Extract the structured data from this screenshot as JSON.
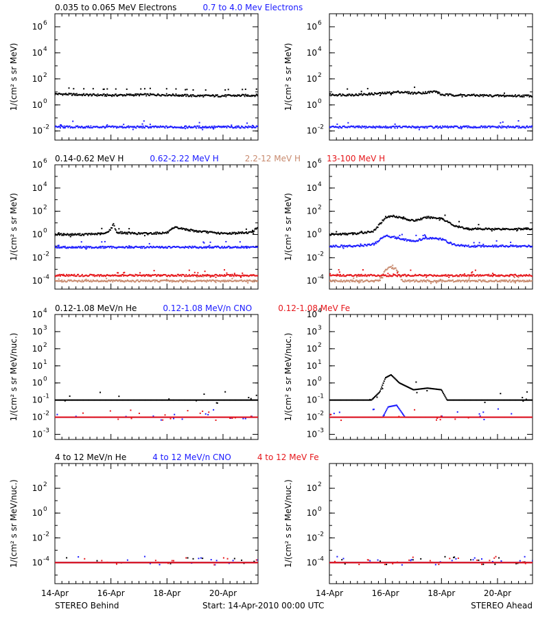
{
  "footer": {
    "left": "STEREO Behind",
    "center": "Start: 14-Apr-2010 00:00 UTC",
    "right": "STEREO Ahead"
  },
  "x_ticks": [
    "14-Apr",
    "16-Apr",
    "18-Apr",
    "20-Apr"
  ],
  "x_range_days": [
    14,
    21.25
  ],
  "colors": {
    "black": "#000000",
    "blue": "#1a1aff",
    "tan": "#c88a6e",
    "red": "#e6161a"
  },
  "chart_data": [
    {
      "type": "scatter",
      "row": 1,
      "spacecraft": "STEREO Behind",
      "log_y": true,
      "ylabel": "1/(cm² s sr MeV)",
      "ylim": [
        0.002,
        10000000
      ],
      "yticks": [
        {
          "v": 0.01,
          "m": "10",
          "e": "-2"
        },
        {
          "v": 1,
          "m": "10",
          "e": "0"
        },
        {
          "v": 100,
          "m": "10",
          "e": "2"
        },
        {
          "v": 10000,
          "m": "10",
          "e": "4"
        },
        {
          "v": 1000000,
          "m": "10",
          "e": "6"
        }
      ],
      "legend": [
        {
          "label": "0.035 to 0.065 MeV Electrons",
          "color": "black"
        },
        {
          "label": "0.7 to 4.0 Mev Electrons",
          "color": "blue"
        }
      ],
      "series": [
        {
          "name": "0.035 to 0.065 MeV Electrons",
          "color": "black",
          "x": [
            14,
            15,
            16,
            17,
            18,
            19,
            20,
            21.25
          ],
          "y": [
            7,
            6,
            5.5,
            6,
            6,
            5,
            5,
            5.5
          ]
        },
        {
          "name": "0.7 to 4.0 Mev Electrons",
          "color": "blue",
          "x": [
            14,
            21.25
          ],
          "y": [
            0.02,
            0.02
          ]
        }
      ]
    },
    {
      "type": "scatter",
      "row": 1,
      "spacecraft": "STEREO Ahead",
      "log_y": true,
      "ylabel": "1/(cm² s sr MeV)",
      "ylim": [
        0.002,
        10000000
      ],
      "yticks": [
        {
          "v": 0.01,
          "m": "10",
          "e": "-2"
        },
        {
          "v": 1,
          "m": "10",
          "e": "0"
        },
        {
          "v": 100,
          "m": "10",
          "e": "2"
        },
        {
          "v": 10000,
          "m": "10",
          "e": "4"
        },
        {
          "v": 1000000,
          "m": "10",
          "e": "6"
        }
      ],
      "legend": [],
      "series": [
        {
          "name": "0.035 to 0.065 MeV Electrons",
          "color": "black",
          "x": [
            14,
            15,
            16,
            16.5,
            17,
            17.5,
            17.8,
            18,
            19,
            20,
            21.25
          ],
          "y": [
            6,
            6,
            8,
            10,
            8,
            9,
            11,
            6,
            5.5,
            5,
            5
          ]
        },
        {
          "name": "0.7 to 4.0 Mev Electrons",
          "color": "blue",
          "x": [
            14,
            21.25
          ],
          "y": [
            0.02,
            0.02
          ]
        }
      ]
    },
    {
      "type": "scatter",
      "row": 2,
      "spacecraft": "STEREO Behind",
      "log_y": true,
      "ylabel": "1/(cm² s sr MeV)",
      "ylim": [
        2e-05,
        1000000
      ],
      "yticks": [
        {
          "v": 0.0001,
          "m": "10",
          "e": "-4"
        },
        {
          "v": 0.01,
          "m": "10",
          "e": "-2"
        },
        {
          "v": 1,
          "m": "10",
          "e": "0"
        },
        {
          "v": 100,
          "m": "10",
          "e": "2"
        },
        {
          "v": 10000,
          "m": "10",
          "e": "4"
        },
        {
          "v": 1000000,
          "m": "10",
          "e": "6"
        }
      ],
      "legend": [
        {
          "label": "0.14-0.62 MeV H",
          "color": "black"
        },
        {
          "label": "0.62-2.22 MeV H",
          "color": "blue"
        },
        {
          "label": "2.2-12 MeV H",
          "color": "tan"
        },
        {
          "label": "13-100 MeV H",
          "color": "red"
        }
      ],
      "series": [
        {
          "name": "0.14-0.62 MeV H",
          "color": "black",
          "x": [
            14,
            15,
            15.8,
            16,
            16.1,
            16.2,
            17,
            18,
            18.3,
            19,
            20,
            21,
            21.25
          ],
          "y": [
            1,
            1,
            1.2,
            3,
            8,
            1.5,
            1.2,
            1.4,
            4,
            2,
            1.2,
            1.5,
            4
          ]
        },
        {
          "name": "0.62-2.22 MeV H",
          "color": "blue",
          "x": [
            14,
            21.25
          ],
          "y": [
            0.08,
            0.08
          ]
        },
        {
          "name": "2.2-12 MeV H",
          "color": "tan",
          "x": [
            14,
            21.25
          ],
          "y": [
            0.0001,
            0.0001
          ]
        },
        {
          "name": "13-100 MeV H",
          "color": "red",
          "x": [
            14,
            21.25
          ],
          "y": [
            0.0003,
            0.0003
          ]
        }
      ]
    },
    {
      "type": "scatter",
      "row": 2,
      "spacecraft": "STEREO Ahead",
      "log_y": true,
      "ylabel": "1/(cm² s sr MeV)",
      "ylim": [
        2e-05,
        1000000
      ],
      "yticks": [
        {
          "v": 0.0001,
          "m": "10",
          "e": "-4"
        },
        {
          "v": 0.01,
          "m": "10",
          "e": "-2"
        },
        {
          "v": 1,
          "m": "10",
          "e": "0"
        },
        {
          "v": 100,
          "m": "10",
          "e": "2"
        },
        {
          "v": 10000,
          "m": "10",
          "e": "4"
        },
        {
          "v": 1000000,
          "m": "10",
          "e": "6"
        }
      ],
      "legend": [],
      "series": [
        {
          "name": "0.14-0.62 MeV H",
          "color": "black",
          "x": [
            14,
            15,
            15.6,
            16,
            16.3,
            17,
            17.5,
            18,
            18.5,
            19,
            20,
            21,
            21.25
          ],
          "y": [
            1,
            1.2,
            2,
            30,
            40,
            15,
            30,
            25,
            5,
            3,
            3,
            3,
            3
          ]
        },
        {
          "name": "0.62-2.22 MeV H",
          "color": "blue",
          "x": [
            14,
            15,
            15.6,
            16,
            16.3,
            17,
            17.5,
            18,
            18.5,
            19,
            20,
            21.25
          ],
          "y": [
            0.1,
            0.1,
            0.15,
            0.8,
            0.6,
            0.25,
            0.5,
            0.4,
            0.12,
            0.1,
            0.1,
            0.1
          ]
        },
        {
          "name": "2.2-12 MeV H",
          "color": "tan",
          "x": [
            14,
            15.8,
            16,
            16.2,
            16.4,
            16.6,
            21.25
          ],
          "y": [
            0.0001,
            0.0001,
            0.001,
            0.0015,
            0.001,
            0.0001,
            0.0001
          ]
        },
        {
          "name": "13-100 MeV H",
          "color": "red",
          "x": [
            14,
            21.25
          ],
          "y": [
            0.0003,
            0.0003
          ]
        }
      ]
    },
    {
      "type": "scatter",
      "row": 3,
      "spacecraft": "STEREO Behind",
      "log_y": true,
      "ylabel": "1/(cm² s sr MeV/nuc.)",
      "ylim": [
        0.0005,
        10000
      ],
      "yticks": [
        {
          "v": 0.001,
          "m": "10",
          "e": "-3"
        },
        {
          "v": 0.01,
          "m": "10",
          "e": "-2"
        },
        {
          "v": 0.1,
          "m": "10",
          "e": "-1"
        },
        {
          "v": 1,
          "m": "10",
          "e": "0"
        },
        {
          "v": 10,
          "m": "10",
          "e": "1"
        },
        {
          "v": 100,
          "m": "10",
          "e": "2"
        },
        {
          "v": 1000,
          "m": "10",
          "e": "3"
        },
        {
          "v": 10000,
          "m": "10",
          "e": "4"
        }
      ],
      "legend": [
        {
          "label": "0.12-1.08 MeV/n He",
          "color": "black"
        },
        {
          "label": "0.12-1.08 MeV/n CNO",
          "color": "blue"
        },
        {
          "label": "0.12-1.08 MeV Fe",
          "color": "red"
        }
      ],
      "series": [
        {
          "name": "0.12-1.08 MeV/n He",
          "color": "black",
          "x": [
            14,
            21.25
          ],
          "y": [
            0.1,
            0.1
          ]
        },
        {
          "name": "0.12-1.08 MeV/n CNO",
          "color": "blue",
          "x": [
            14,
            21.25
          ],
          "y": [
            0.01,
            0.01
          ]
        },
        {
          "name": "0.12-1.08 MeV Fe",
          "color": "red",
          "x": [
            14,
            21.25
          ],
          "y": [
            0.01,
            0.01
          ]
        }
      ]
    },
    {
      "type": "scatter",
      "row": 3,
      "spacecraft": "STEREO Ahead",
      "log_y": true,
      "ylabel": "1/(cm² s sr MeV/nuc.)",
      "ylim": [
        0.0005,
        10000
      ],
      "yticks": [
        {
          "v": 0.001,
          "m": "10",
          "e": "-3"
        },
        {
          "v": 0.01,
          "m": "10",
          "e": "-2"
        },
        {
          "v": 0.1,
          "m": "10",
          "e": "-1"
        },
        {
          "v": 1,
          "m": "10",
          "e": "0"
        },
        {
          "v": 10,
          "m": "10",
          "e": "1"
        },
        {
          "v": 100,
          "m": "10",
          "e": "2"
        },
        {
          "v": 1000,
          "m": "10",
          "e": "3"
        },
        {
          "v": 10000,
          "m": "10",
          "e": "4"
        }
      ],
      "legend": [],
      "series": [
        {
          "name": "0.12-1.08 MeV/n He",
          "color": "black",
          "x": [
            14,
            15.5,
            15.8,
            16,
            16.2,
            16.5,
            17,
            17.5,
            18,
            18.2,
            19,
            21.25
          ],
          "y": [
            0.1,
            0.1,
            0.3,
            2,
            3,
            1,
            0.4,
            0.5,
            0.4,
            0.1,
            0.1,
            0.1
          ]
        },
        {
          "name": "0.12-1.08 MeV/n CNO",
          "color": "blue",
          "x": [
            14,
            15.9,
            16.1,
            16.4,
            16.7,
            21.25
          ],
          "y": [
            0.01,
            0.01,
            0.04,
            0.05,
            0.01,
            0.01
          ]
        },
        {
          "name": "0.12-1.08 MeV Fe",
          "color": "red",
          "x": [
            14,
            21.25
          ],
          "y": [
            0.01,
            0.01
          ]
        }
      ]
    },
    {
      "type": "scatter",
      "row": 4,
      "spacecraft": "STEREO Behind",
      "log_y": true,
      "ylabel": "1/(cm² s sr MeV/nuc.)",
      "ylim": [
        2e-06,
        10000
      ],
      "yticks": [
        {
          "v": 0.0001,
          "m": "10",
          "e": "-4"
        },
        {
          "v": 0.01,
          "m": "10",
          "e": "-2"
        },
        {
          "v": 1,
          "m": "10",
          "e": "0"
        },
        {
          "v": 100,
          "m": "10",
          "e": "2"
        }
      ],
      "legend": [
        {
          "label": "4 to 12 MeV/n He",
          "color": "black"
        },
        {
          "label": "4 to 12 MeV/n CNO",
          "color": "blue"
        },
        {
          "label": "4 to 12 MeV Fe",
          "color": "red"
        }
      ],
      "series": [
        {
          "name": "4 to 12 MeV/n He",
          "color": "black",
          "x": [
            14,
            21.25
          ],
          "y": [
            0.0001,
            0.0001
          ]
        },
        {
          "name": "4 to 12 MeV/n CNO",
          "color": "blue",
          "x": [
            14,
            21.25
          ],
          "y": [
            0.0001,
            0.0001
          ]
        },
        {
          "name": "4 to 12 MeV Fe",
          "color": "red",
          "x": [
            14,
            21.25
          ],
          "y": [
            0.0001,
            0.0001
          ]
        }
      ]
    },
    {
      "type": "scatter",
      "row": 4,
      "spacecraft": "STEREO Ahead",
      "log_y": true,
      "ylabel": "1/(cm² s sr MeV/nuc.)",
      "ylim": [
        2e-06,
        10000
      ],
      "yticks": [
        {
          "v": 0.0001,
          "m": "10",
          "e": "-4"
        },
        {
          "v": 0.01,
          "m": "10",
          "e": "-2"
        },
        {
          "v": 1,
          "m": "10",
          "e": "0"
        },
        {
          "v": 100,
          "m": "10",
          "e": "2"
        }
      ],
      "legend": [],
      "series": [
        {
          "name": "4 to 12 MeV/n He",
          "color": "black",
          "x": [
            14,
            21.25
          ],
          "y": [
            0.0001,
            0.0001
          ]
        },
        {
          "name": "4 to 12 MeV/n CNO",
          "color": "blue",
          "x": [
            14,
            21.25
          ],
          "y": [
            0.0001,
            0.0001
          ]
        },
        {
          "name": "4 to 12 MeV Fe",
          "color": "red",
          "x": [
            14,
            21.25
          ],
          "y": [
            0.0001,
            0.0001
          ]
        }
      ]
    }
  ]
}
